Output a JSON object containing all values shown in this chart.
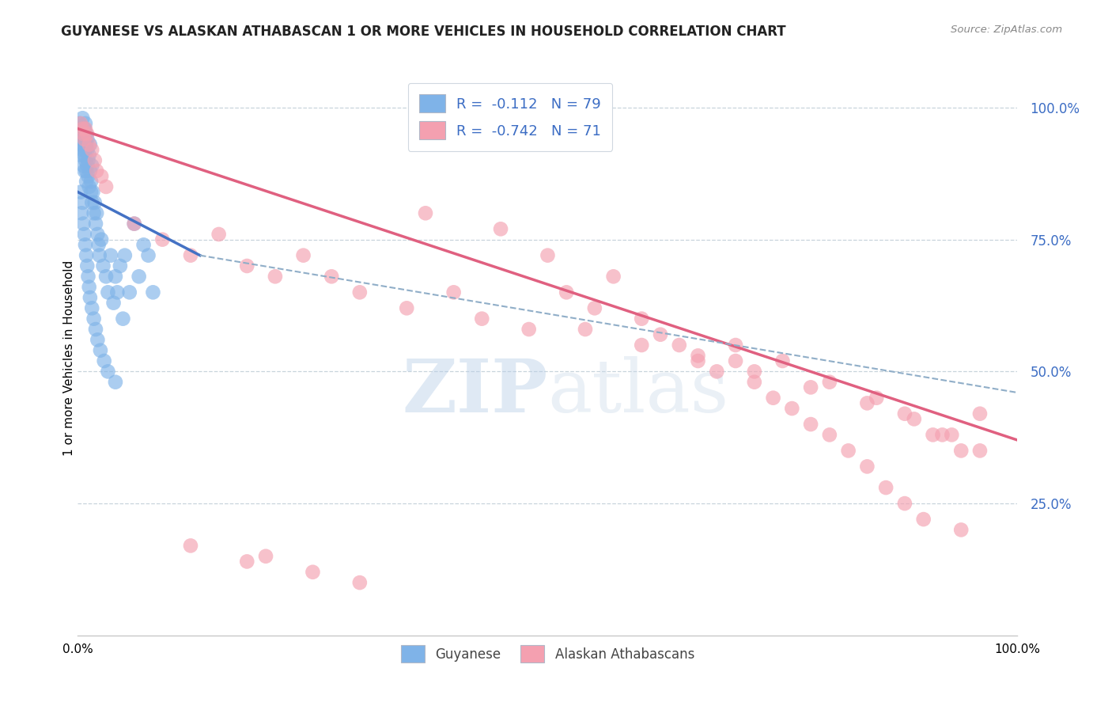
{
  "title": "GUYANESE VS ALASKAN ATHABASCAN 1 OR MORE VEHICLES IN HOUSEHOLD CORRELATION CHART",
  "source": "Source: ZipAtlas.com",
  "ylabel": "1 or more Vehicles in Household",
  "ytick_labels": [
    "100.0%",
    "75.0%",
    "50.0%",
    "25.0%"
  ],
  "ytick_positions": [
    1.0,
    0.75,
    0.5,
    0.25
  ],
  "legend_blue_r": "R =  -0.112",
  "legend_blue_n": "N = 79",
  "legend_pink_r": "R =  -0.742",
  "legend_pink_n": "N = 71",
  "legend_label_blue": "Guyanese",
  "legend_label_pink": "Alaskan Athabascans",
  "blue_color": "#7fb3e8",
  "pink_color": "#f4a0b0",
  "blue_line_color": "#4472c4",
  "pink_line_color": "#e06080",
  "dashed_line_color": "#90aec8",
  "watermark_zip": "ZIP",
  "watermark_atlas": "atlas",
  "blue_scatter_x": [
    0.002,
    0.003,
    0.003,
    0.004,
    0.004,
    0.005,
    0.005,
    0.005,
    0.006,
    0.006,
    0.006,
    0.007,
    0.007,
    0.007,
    0.008,
    0.008,
    0.008,
    0.008,
    0.009,
    0.009,
    0.009,
    0.009,
    0.01,
    0.01,
    0.01,
    0.011,
    0.011,
    0.012,
    0.012,
    0.013,
    0.013,
    0.014,
    0.014,
    0.015,
    0.015,
    0.016,
    0.017,
    0.018,
    0.019,
    0.02,
    0.021,
    0.022,
    0.023,
    0.025,
    0.027,
    0.03,
    0.032,
    0.035,
    0.038,
    0.04,
    0.042,
    0.045,
    0.048,
    0.05,
    0.055,
    0.06,
    0.065,
    0.07,
    0.075,
    0.08,
    0.003,
    0.004,
    0.005,
    0.006,
    0.007,
    0.008,
    0.009,
    0.01,
    0.011,
    0.012,
    0.013,
    0.015,
    0.017,
    0.019,
    0.021,
    0.024,
    0.028,
    0.032,
    0.04
  ],
  "blue_scatter_y": [
    0.97,
    0.95,
    0.93,
    0.96,
    0.91,
    0.94,
    0.92,
    0.98,
    0.93,
    0.95,
    0.89,
    0.91,
    0.96,
    0.88,
    0.94,
    0.92,
    0.97,
    0.9,
    0.93,
    0.95,
    0.88,
    0.86,
    0.92,
    0.89,
    0.94,
    0.9,
    0.87,
    0.91,
    0.85,
    0.88,
    0.93,
    0.86,
    0.84,
    0.89,
    0.82,
    0.84,
    0.8,
    0.82,
    0.78,
    0.8,
    0.76,
    0.74,
    0.72,
    0.75,
    0.7,
    0.68,
    0.65,
    0.72,
    0.63,
    0.68,
    0.65,
    0.7,
    0.6,
    0.72,
    0.65,
    0.78,
    0.68,
    0.74,
    0.72,
    0.65,
    0.84,
    0.8,
    0.82,
    0.78,
    0.76,
    0.74,
    0.72,
    0.7,
    0.68,
    0.66,
    0.64,
    0.62,
    0.6,
    0.58,
    0.56,
    0.54,
    0.52,
    0.5,
    0.48
  ],
  "pink_scatter_x": [
    0.003,
    0.005,
    0.006,
    0.007,
    0.008,
    0.01,
    0.012,
    0.015,
    0.018,
    0.02,
    0.025,
    0.03,
    0.06,
    0.09,
    0.12,
    0.15,
    0.18,
    0.21,
    0.24,
    0.27,
    0.3,
    0.35,
    0.37,
    0.4,
    0.43,
    0.45,
    0.48,
    0.5,
    0.52,
    0.55,
    0.57,
    0.6,
    0.62,
    0.64,
    0.66,
    0.68,
    0.7,
    0.72,
    0.74,
    0.76,
    0.78,
    0.8,
    0.82,
    0.84,
    0.86,
    0.88,
    0.9,
    0.92,
    0.94,
    0.96,
    0.54,
    0.6,
    0.66,
    0.72,
    0.78,
    0.84,
    0.89,
    0.93,
    0.96,
    0.7,
    0.75,
    0.8,
    0.85,
    0.88,
    0.91,
    0.94,
    0.2,
    0.25,
    0.3,
    0.12,
    0.18
  ],
  "pink_scatter_y": [
    0.97,
    0.96,
    0.95,
    0.94,
    0.96,
    0.95,
    0.93,
    0.92,
    0.9,
    0.88,
    0.87,
    0.85,
    0.78,
    0.75,
    0.72,
    0.76,
    0.7,
    0.68,
    0.72,
    0.68,
    0.65,
    0.62,
    0.8,
    0.65,
    0.6,
    0.77,
    0.58,
    0.72,
    0.65,
    0.62,
    0.68,
    0.6,
    0.57,
    0.55,
    0.53,
    0.5,
    0.52,
    0.48,
    0.45,
    0.43,
    0.4,
    0.38,
    0.35,
    0.32,
    0.28,
    0.25,
    0.22,
    0.38,
    0.2,
    0.42,
    0.58,
    0.55,
    0.52,
    0.5,
    0.47,
    0.44,
    0.41,
    0.38,
    0.35,
    0.55,
    0.52,
    0.48,
    0.45,
    0.42,
    0.38,
    0.35,
    0.15,
    0.12,
    0.1,
    0.17,
    0.14
  ],
  "blue_line_x": [
    0.0,
    0.13
  ],
  "blue_line_y": [
    0.84,
    0.72
  ],
  "pink_line_x": [
    0.0,
    1.0
  ],
  "pink_line_y": [
    0.96,
    0.37
  ],
  "dashed_line_x": [
    0.13,
    1.0
  ],
  "dashed_line_y": [
    0.72,
    0.46
  ],
  "xlim": [
    0.0,
    1.0
  ],
  "ylim": [
    0.0,
    1.05
  ],
  "title_fontsize": 12,
  "source_fontsize": 9.5
}
